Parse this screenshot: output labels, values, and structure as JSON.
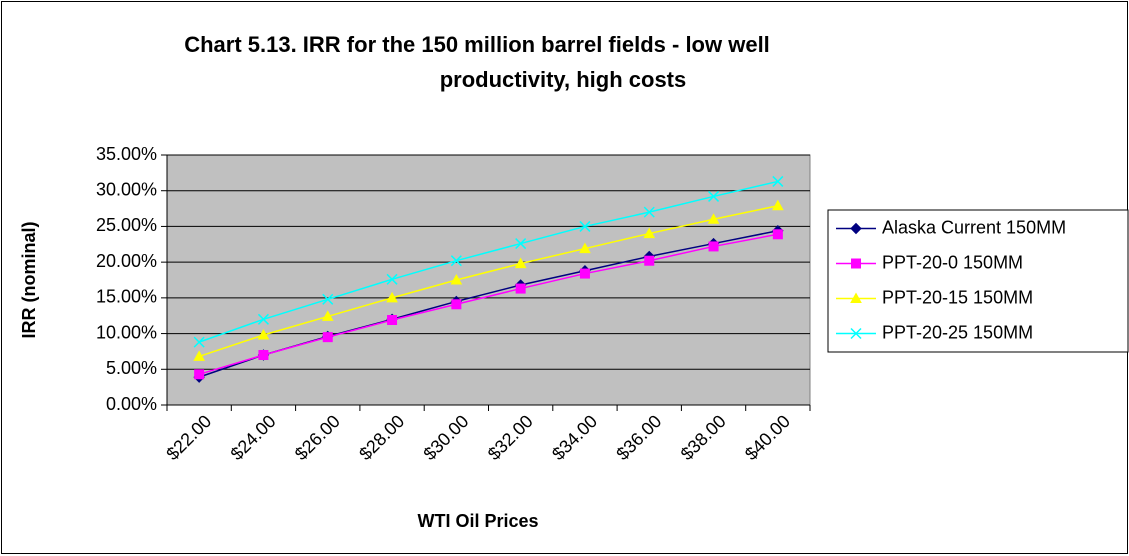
{
  "chart_data": {
    "type": "line",
    "title": [
      "Chart 5.13. IRR for the 150 million barrel fields - low well",
      "productivity, high costs"
    ],
    "x_label": "WTI Oil Prices",
    "y_label": "IRR (nominal)",
    "categories": [
      "$22.00",
      "$24.00",
      "$26.00",
      "$28.00",
      "$30.00",
      "$32.00",
      "$34.00",
      "$36.00",
      "$38.00",
      "$40.00"
    ],
    "series": [
      {
        "name": "Alaska Current 150MM",
        "color": "#000080",
        "marker": "diamond",
        "values": [
          3.9,
          7.0,
          9.6,
          12.0,
          14.5,
          16.8,
          18.8,
          20.8,
          22.6,
          24.4
        ]
      },
      {
        "name": "PPT-20-0 150MM",
        "color": "#ff00ff",
        "marker": "square",
        "values": [
          4.3,
          7.0,
          9.5,
          11.9,
          14.1,
          16.3,
          18.4,
          20.2,
          22.2,
          23.9
        ]
      },
      {
        "name": "PPT-20-15 150MM",
        "color": "#ffff00",
        "marker": "triangle",
        "values": [
          6.8,
          9.8,
          12.4,
          15.0,
          17.5,
          19.8,
          21.9,
          24.0,
          26.0,
          27.9
        ]
      },
      {
        "name": "PPT-20-25 150MM",
        "color": "#00ffff",
        "marker": "x",
        "values": [
          8.8,
          12.0,
          14.8,
          17.6,
          20.2,
          22.6,
          25.0,
          27.0,
          29.2,
          31.3
        ]
      }
    ],
    "ylim": [
      0,
      35
    ],
    "yticks": [
      {
        "value": 0,
        "label": "0.00%"
      },
      {
        "value": 5,
        "label": "5.00%"
      },
      {
        "value": 10,
        "label": "10.00%"
      },
      {
        "value": 15,
        "label": "15.00%"
      },
      {
        "value": 20,
        "label": "20.00%"
      },
      {
        "value": 25,
        "label": "25.00%"
      },
      {
        "value": 30,
        "label": "30.00%"
      },
      {
        "value": 35,
        "label": "35.00%"
      }
    ],
    "grid": true,
    "plot_background": "#c0c0c0",
    "legend": "right"
  }
}
